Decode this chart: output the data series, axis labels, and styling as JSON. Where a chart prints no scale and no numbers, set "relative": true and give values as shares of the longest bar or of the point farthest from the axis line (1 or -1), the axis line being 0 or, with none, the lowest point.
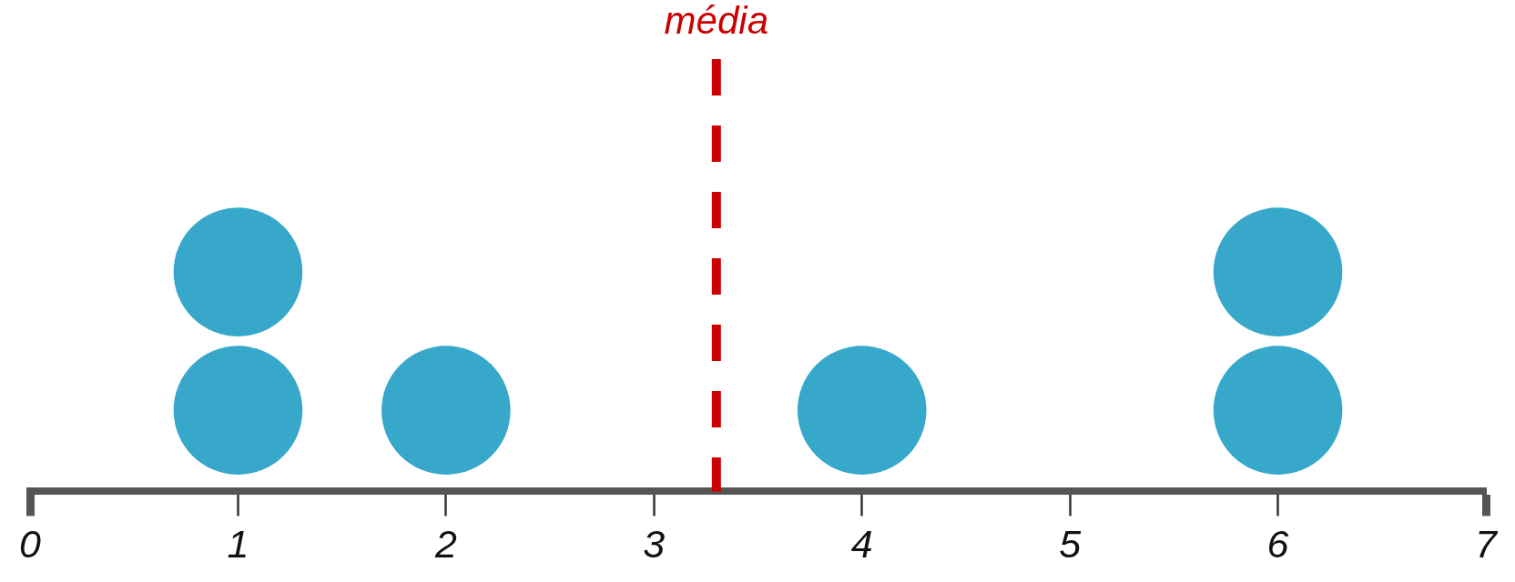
{
  "chart_data": {
    "type": "scatter",
    "relative": true,
    "x": [
      1,
      1,
      2,
      4,
      6,
      6
    ],
    "series": [
      {
        "color": "#37a8ca",
        "values": [
          0.37,
          1,
          0.37,
          0.37,
          0.37,
          1
        ]
      }
    ],
    "xlim": [
      0,
      7
    ],
    "xticks": [
      0,
      1,
      2,
      3,
      4,
      5,
      6,
      7
    ],
    "tick_labels": "x",
    "marker": "circle",
    "ref_lines": [
      {
        "axis": "x",
        "value": 3.3,
        "label": "média",
        "color": "#cc0000",
        "line_style": "dashed"
      }
    ]
  }
}
